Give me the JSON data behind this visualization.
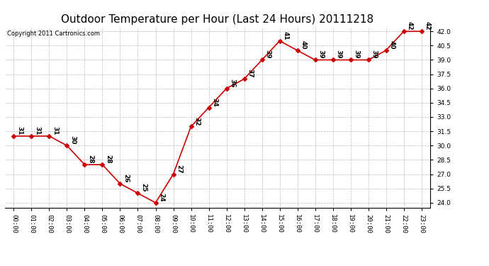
{
  "title": "Outdoor Temperature per Hour (Last 24 Hours) 20111218",
  "copyright": "Copyright 2011 Cartronics.com",
  "hours": [
    "00:00",
    "01:00",
    "02:00",
    "03:00",
    "04:00",
    "05:00",
    "06:00",
    "07:00",
    "08:00",
    "09:00",
    "10:00",
    "11:00",
    "12:00",
    "13:00",
    "14:00",
    "15:00",
    "16:00",
    "17:00",
    "18:00",
    "19:00",
    "20:00",
    "21:00",
    "22:00",
    "23:00"
  ],
  "values": [
    31,
    31,
    31,
    30,
    28,
    28,
    26,
    25,
    24,
    27,
    32,
    34,
    36,
    37,
    39,
    41,
    40,
    39,
    39,
    39,
    39,
    40,
    42,
    42
  ],
  "line_color": "#cc0000",
  "marker_color": "#cc0000",
  "background_color": "#ffffff",
  "grid_color": "#bbbbbb",
  "ylim_min": 23.5,
  "ylim_max": 42.5,
  "yticks": [
    24.0,
    25.5,
    27.0,
    28.5,
    30.0,
    31.5,
    33.0,
    34.5,
    36.0,
    37.5,
    39.0,
    40.5,
    42.0
  ],
  "title_fontsize": 11,
  "label_fontsize": 6.5,
  "tick_fontsize": 6.5,
  "copyright_fontsize": 6
}
